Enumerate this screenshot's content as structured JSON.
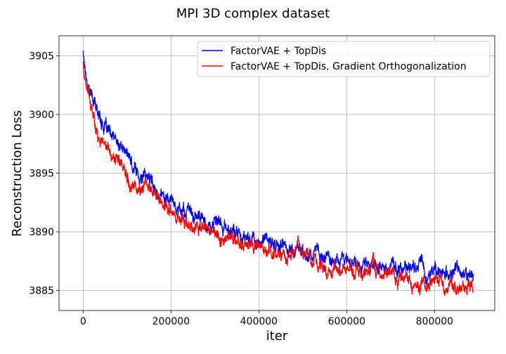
{
  "chart_data": {
    "type": "line",
    "title": "MPI 3D complex dataset",
    "xlabel": "iter",
    "ylabel": "Reconstruction Loss",
    "xlim": [
      -55000,
      937000
    ],
    "ylim": [
      3883.3,
      3906.7
    ],
    "xticks": [
      0,
      200000,
      400000,
      600000,
      800000
    ],
    "yticks": [
      3885,
      3890,
      3895,
      3900,
      3905
    ],
    "grid": true,
    "legend_position": "top-right",
    "series": [
      {
        "name": "FactorVAE + TopDis",
        "color": "#0000ff",
        "x": [
          0,
          5000,
          10000,
          20000,
          30000,
          40000,
          50000,
          60000,
          70000,
          80000,
          90000,
          100000,
          110000,
          120000,
          130000,
          140000,
          150000,
          160000,
          170000,
          180000,
          190000,
          200000,
          220000,
          240000,
          260000,
          280000,
          300000,
          320000,
          340000,
          360000,
          380000,
          400000,
          420000,
          440000,
          460000,
          480000,
          500000,
          520000,
          540000,
          560000,
          580000,
          600000,
          620000,
          640000,
          660000,
          680000,
          700000,
          720000,
          740000,
          760000,
          770000,
          780000,
          800000,
          820000,
          840000,
          860000,
          880000,
          888000
        ],
        "y": [
          3905.4,
          3903.8,
          3903.0,
          3901.6,
          3900.4,
          3899.8,
          3898.9,
          3898.2,
          3897.7,
          3897.3,
          3897.0,
          3896.6,
          3895.6,
          3895.2,
          3894.9,
          3894.6,
          3894.8,
          3893.9,
          3893.5,
          3893.2,
          3893.0,
          3892.7,
          3892.1,
          3891.6,
          3891.2,
          3890.8,
          3890.6,
          3890.3,
          3890.0,
          3889.8,
          3889.5,
          3889.3,
          3889.1,
          3888.9,
          3888.7,
          3888.5,
          3888.5,
          3888.2,
          3888.0,
          3887.9,
          3887.8,
          3887.6,
          3887.5,
          3887.3,
          3887.2,
          3887.1,
          3887.0,
          3886.9,
          3886.8,
          3887.2,
          3888.0,
          3886.7,
          3886.6,
          3886.5,
          3886.4,
          3886.3,
          3886.3,
          3886.5
        ]
      },
      {
        "name": "FactorVAE + TopDis, Gradient Orthogonalization",
        "color": "#ff0000",
        "x": [
          0,
          5000,
          10000,
          20000,
          30000,
          40000,
          50000,
          60000,
          70000,
          80000,
          90000,
          100000,
          110000,
          120000,
          130000,
          140000,
          150000,
          160000,
          170000,
          180000,
          190000,
          200000,
          220000,
          240000,
          260000,
          280000,
          300000,
          320000,
          340000,
          360000,
          380000,
          400000,
          420000,
          440000,
          460000,
          480000,
          490000,
          500000,
          520000,
          540000,
          560000,
          580000,
          600000,
          620000,
          640000,
          660000,
          680000,
          700000,
          720000,
          740000,
          760000,
          780000,
          800000,
          820000,
          840000,
          860000,
          880000,
          888000
        ],
        "y": [
          3904.4,
          3902.6,
          3901.8,
          3900.0,
          3898.9,
          3898.1,
          3897.4,
          3896.9,
          3896.4,
          3895.9,
          3895.5,
          3895.2,
          3894.4,
          3894.0,
          3893.8,
          3893.6,
          3894.3,
          3893.1,
          3892.7,
          3892.4,
          3892.1,
          3891.8,
          3891.1,
          3890.7,
          3890.4,
          3890.0,
          3889.8,
          3889.5,
          3889.3,
          3889.1,
          3888.8,
          3888.6,
          3888.4,
          3888.2,
          3888.0,
          3887.9,
          3888.9,
          3887.7,
          3887.4,
          3887.2,
          3887.0,
          3886.9,
          3886.8,
          3886.6,
          3886.4,
          3887.0,
          3886.3,
          3886.2,
          3886.0,
          3885.9,
          3885.8,
          3885.6,
          3885.5,
          3885.4,
          3885.3,
          3885.2,
          3885.1,
          3885.3
        ]
      }
    ]
  }
}
